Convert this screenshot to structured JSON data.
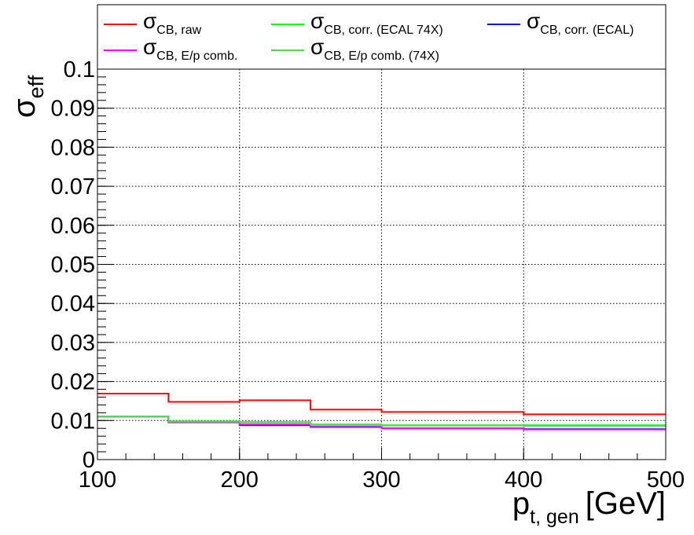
{
  "chart_data": {
    "type": "line",
    "step": true,
    "x_edges": [
      100,
      150,
      200,
      250,
      300,
      400,
      500
    ],
    "xlim": [
      100,
      500
    ],
    "ylim": [
      0,
      0.1
    ],
    "x_ticks": [
      "100",
      "200",
      "300",
      "400",
      "500"
    ],
    "y_ticks": [
      "0",
      "0.01",
      "0.02",
      "0.03",
      "0.04",
      "0.05",
      "0.06",
      "0.07",
      "0.08",
      "0.09",
      "0.1"
    ],
    "ylabel": {
      "main": "σ",
      "sub": "eff"
    },
    "xlabel": {
      "main": "p",
      "sub": "t, gen",
      "unit": "[GeV]"
    },
    "grid": true,
    "legend_position": "top",
    "series": [
      {
        "name_main": "σ",
        "name_sub": "CB, raw",
        "color": "#ff0000",
        "values": [
          0.0169,
          0.0148,
          0.0152,
          0.0128,
          0.0122,
          0.0116
        ]
      },
      {
        "name_main": "σ",
        "name_sub": "CB, corr. (ECAL 74X)",
        "color": "#00ff00",
        "values": [
          0.011,
          0.0098,
          0.0096,
          0.009,
          0.0088,
          0.0088
        ]
      },
      {
        "name_main": "σ",
        "name_sub": "CB, corr. (ECAL)",
        "color": "#0000ff",
        "values": [
          0.011,
          0.0096,
          0.0088,
          0.0084,
          0.008,
          0.0078
        ]
      },
      {
        "name_main": "σ",
        "name_sub": "CB, E/p comb.",
        "color": "#ff00ff",
        "values": [
          0.011,
          0.0095,
          0.009,
          0.0083,
          0.008,
          0.0077
        ]
      },
      {
        "name_main": "σ",
        "name_sub": "CB, E/p comb. (74X)",
        "color": "#55d655",
        "values": [
          0.011,
          0.0097,
          0.0095,
          0.0089,
          0.0087,
          0.0086
        ]
      }
    ]
  }
}
